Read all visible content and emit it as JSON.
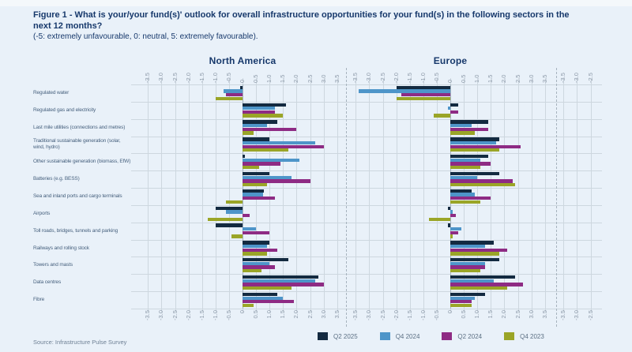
{
  "figure": {
    "title": "Figure 1 - What is your/your fund(s)' outlook for overall infrastructure opportunities for your fund(s) in the following sectors in the next 12 months?",
    "subtitle": "(-5: extremely unfavourable, 0: neutral, 5: extremely favourable).",
    "source": "Source:  Infrastructure Pulse Survey"
  },
  "colors": {
    "background": "#e9f1f9",
    "title_text": "#16386b",
    "category_text": "#47617e",
    "tick_text": "#8e9baa",
    "gridline": "#cdd7df",
    "q2_2025": "#132a40",
    "q4_2024": "#4e95c9",
    "q2_2024": "#8e2b84",
    "q4_2023": "#9aa527"
  },
  "chart_data": {
    "type": "bar",
    "orientation": "horizontal",
    "value_axis": {
      "min": -3.5,
      "max": 3.5,
      "step": 0.5,
      "labels_top": true,
      "labels_bottom": true,
      "zero_label": "0"
    },
    "grid": true,
    "categories": [
      "Regulated water",
      "Regulated gas and electricity",
      "Last mile utilities (connections and metres)",
      "Traditional sustainable generation (solar, wind, hydro)",
      "Other sustainable generation (biomass, EfW)",
      "Batteries (e.g. BESS)",
      "Sea and inland ports and cargo terminals",
      "Airports",
      "Toll roads, bridges, tunnels and parking",
      "Railways and rolling stock",
      "Towers and masts",
      "Data centres",
      "Fibre"
    ],
    "legend": {
      "position": "bottom",
      "entries": [
        {
          "label": "Q2 2025",
          "color": "#132a40"
        },
        {
          "label": "Q4 2024",
          "color": "#4e95c9"
        },
        {
          "label": "Q2 2024",
          "color": "#8e2b84"
        },
        {
          "label": "Q4 2023",
          "color": "#9aa527"
        }
      ]
    },
    "panels": [
      {
        "title": "North America",
        "series": [
          {
            "name": "Q2 2025",
            "color": "#132a40",
            "values": [
              -0.1,
              1.6,
              1.3,
              1.0,
              0.1,
              1.0,
              0.8,
              -1.0,
              -1.0,
              1.0,
              1.7,
              2.8,
              1.3
            ]
          },
          {
            "name": "Q4 2024",
            "color": "#4e95c9",
            "values": [
              -0.7,
              1.2,
              0.9,
              2.7,
              2.1,
              1.8,
              0.75,
              -0.6,
              0.5,
              0.9,
              1.0,
              2.7,
              1.5
            ]
          },
          {
            "name": "Q2 2024",
            "color": "#8e2b84",
            "values": [
              -0.6,
              1.2,
              2.0,
              3.0,
              1.4,
              2.5,
              1.2,
              0.25,
              1.0,
              1.3,
              1.2,
              3.0,
              1.9
            ]
          },
          {
            "name": "Q4 2023",
            "color": "#9aa527",
            "values": [
              -1.0,
              1.5,
              0.4,
              1.7,
              0.6,
              0.9,
              -0.6,
              -1.3,
              -0.4,
              0.9,
              0.7,
              1.8,
              0.4
            ]
          }
        ]
      },
      {
        "title": "Europe",
        "series": [
          {
            "name": "Q2 2025",
            "color": "#132a40",
            "values": [
              -2.0,
              0.3,
              1.4,
              1.8,
              1.4,
              1.8,
              0.8,
              -0.1,
              -0.1,
              1.6,
              1.8,
              2.4,
              1.3
            ]
          },
          {
            "name": "Q4 2024",
            "color": "#4e95c9",
            "values": [
              -3.4,
              -0.1,
              0.8,
              1.7,
              1.1,
              1.0,
              0.9,
              0.1,
              0.4,
              1.3,
              1.3,
              1.6,
              0.9
            ]
          },
          {
            "name": "Q2 2024",
            "color": "#8e2b84",
            "values": [
              -1.8,
              0.3,
              1.4,
              2.6,
              1.5,
              2.3,
              1.5,
              0.2,
              0.3,
              2.1,
              1.3,
              2.7,
              0.8
            ]
          },
          {
            "name": "Q4 2023",
            "color": "#9aa527",
            "values": [
              -2.0,
              -0.6,
              0.9,
              1.8,
              1.1,
              2.4,
              1.1,
              -0.8,
              0.1,
              1.8,
              1.1,
              2.1,
              0.8
            ]
          }
        ]
      },
      {
        "title": "",
        "clipped": true,
        "visible_ticks": [
          -3.5,
          -3.0,
          -2.5
        ],
        "series": []
      }
    ]
  }
}
